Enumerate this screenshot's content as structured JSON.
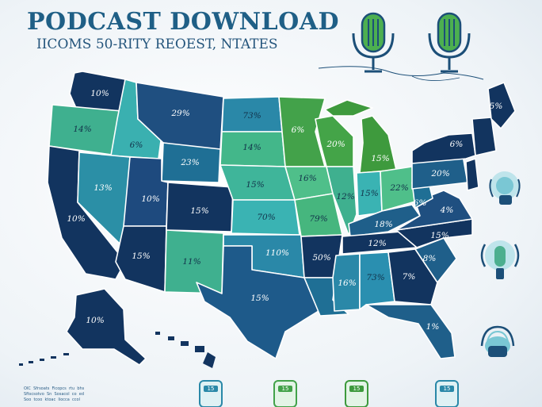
{
  "header": {
    "title": "PODCAST DOWNLOAD",
    "subtitle": "IICOMS 50-RITY REOEST, NTATES"
  },
  "colors": {
    "navy": "#12345f",
    "blue": "#1f5b85",
    "teal": "#2b8fa6",
    "seafoam": "#43b7a8",
    "mint": "#5fc08a",
    "green": "#3f9a3e",
    "background": "#eef3f7"
  },
  "icons": [
    "microphone-icon",
    "microphone-icon",
    "podcast-device-icon",
    "podcast-device-icon",
    "podcast-device-icon",
    "podcast-app-icon",
    "podcast-app-icon",
    "podcast-app-icon",
    "podcast-app-icon"
  ],
  "footnote": "OIC  Sfrsoats  Ficopcs  rtu  bhs\nSftscsotvo  Sn  Sosacol  co  ed\nSoo  tcoo  ktoac  Iiocca  ccol",
  "bottom_icons": [
    "15",
    "15",
    "15",
    "15"
  ],
  "states": {
    "wa": "10%",
    "or": "14%",
    "ca": "10%",
    "id": "6%",
    "nv": "13%",
    "mt": "29%",
    "wy": "23%",
    "ut": "10%",
    "az": "15%",
    "co": "15%",
    "nm": "11%",
    "nd": "73%",
    "sd": "14%",
    "ne": "15%",
    "ks": "70%",
    "ok": "110%",
    "tx": "15%",
    "mn": "6%",
    "ia": "16%",
    "mo": "79%",
    "ar": "50%",
    "la": "",
    "wi": "20%",
    "il": "12%",
    "mi": "15%",
    "in": "15%",
    "oh": "22%",
    "ky": "18%",
    "tn": "12%",
    "ms": "16%",
    "al": "73%",
    "ga": "7%",
    "fl": "1%",
    "sc": "8%",
    "nc": "15%",
    "va": "4%",
    "wv": "6%",
    "pa": "20%",
    "ny": "6%",
    "me": "5%",
    "ak": "10%"
  }
}
